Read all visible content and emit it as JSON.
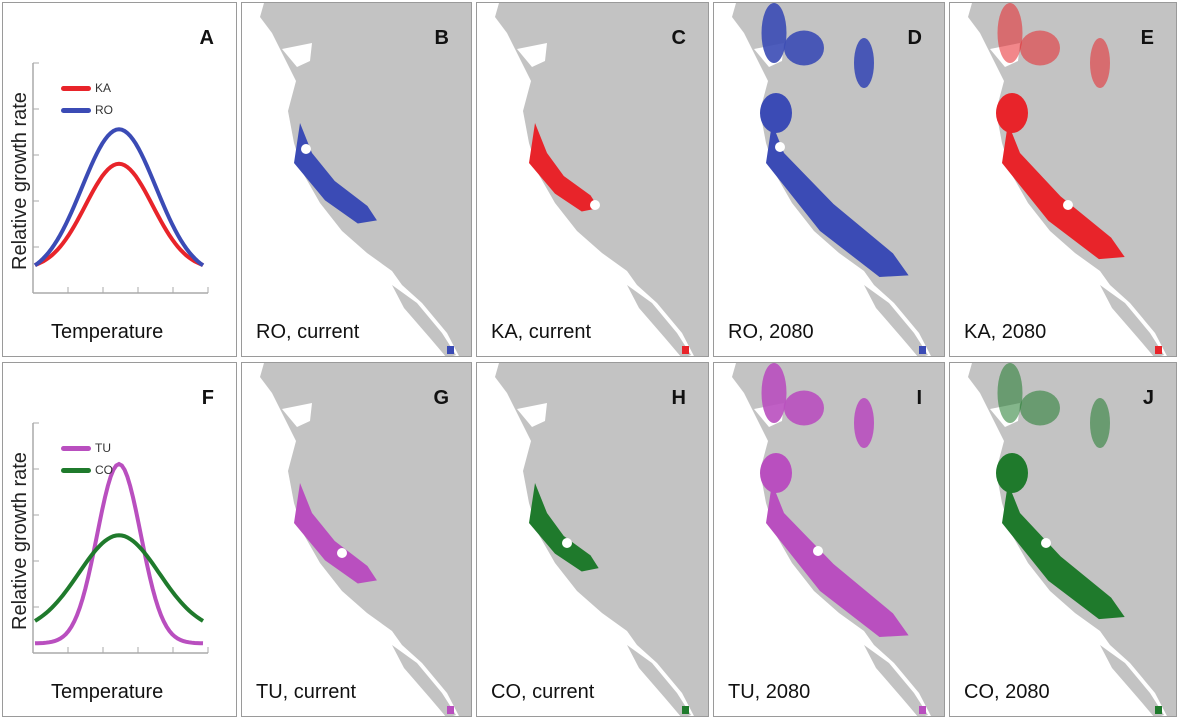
{
  "panels": [
    {
      "letter": "A",
      "y_label": "Relative growth rate",
      "x_label": "Temperature",
      "legend": [
        {
          "label": "KA",
          "color": "#e8242a"
        },
        {
          "label": "RO",
          "color": "#3b4bb5"
        }
      ]
    },
    {
      "letter": "B",
      "caption": "RO, current",
      "color": "#3b4bb5"
    },
    {
      "letter": "C",
      "caption": "KA, current",
      "color": "#e8242a"
    },
    {
      "letter": "D",
      "caption": "RO, 2080",
      "color": "#3b4bb5"
    },
    {
      "letter": "E",
      "caption": "KA, 2080",
      "color": "#e8242a"
    },
    {
      "letter": "F",
      "y_label": "Relative growth rate",
      "x_label": "Temperature",
      "legend": [
        {
          "label": "TU",
          "color": "#b94fbf"
        },
        {
          "label": "CO",
          "color": "#1f7a2c"
        }
      ]
    },
    {
      "letter": "G",
      "caption": "TU, current",
      "color": "#b94fbf"
    },
    {
      "letter": "H",
      "caption": "CO, current",
      "color": "#1f7a2c"
    },
    {
      "letter": "I",
      "caption": "TU, 2080",
      "color": "#b94fbf"
    },
    {
      "letter": "J",
      "caption": "CO, 2080",
      "color": "#1f7a2c"
    }
  ]
}
